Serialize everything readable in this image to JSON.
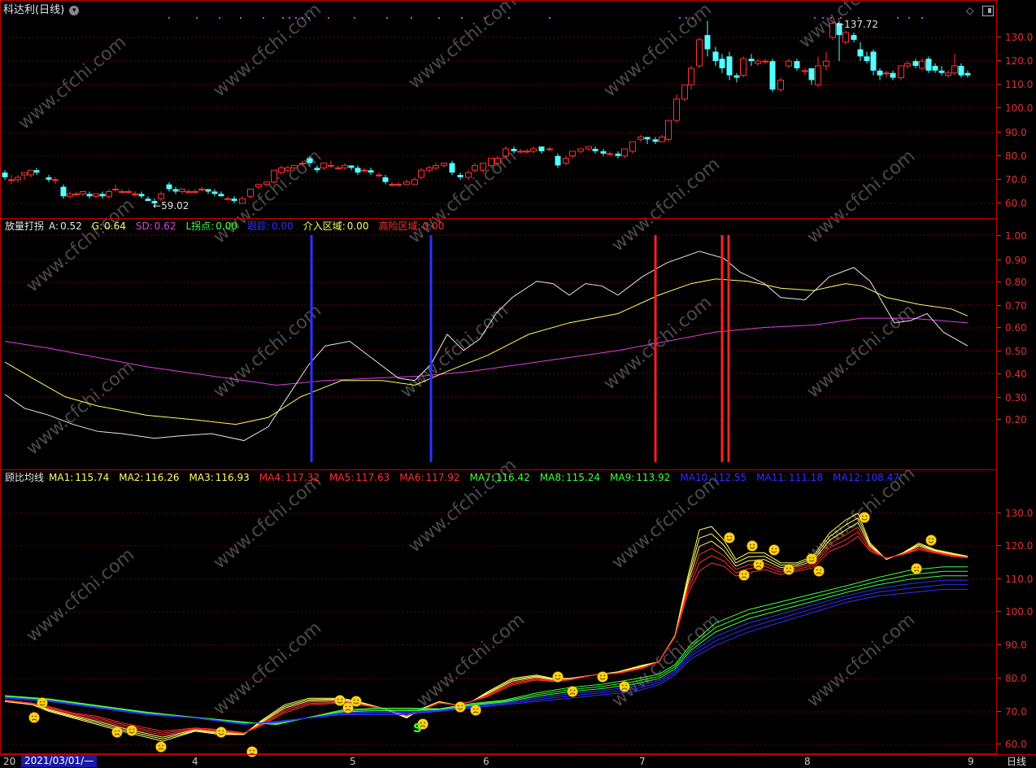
{
  "main": {
    "title": "科达利(日线)",
    "high_label": "137.72",
    "low_label": "59.02",
    "yaxis": [
      "130.0",
      "120.0",
      "110.0",
      "100.0",
      "90.0",
      "80.0",
      "70.0",
      "60.0"
    ]
  },
  "indicator1": {
    "name": "放量打拐",
    "items": [
      {
        "label": "A:",
        "value": "0.52",
        "color": "#e8e8e8"
      },
      {
        "label": "G:",
        "value": "0.64",
        "color": "#ffff66"
      },
      {
        "label": "SD:",
        "value": "0.62",
        "color": "#e040e0"
      },
      {
        "label": "L拐点:",
        "value": "0.00",
        "color": "#40ff40"
      },
      {
        "label": "跟踪:",
        "value": "0.00",
        "color": "#3030ff"
      },
      {
        "label": "介入区域:",
        "value": "0.00",
        "color": "#ffff66"
      },
      {
        "label": "高险区域:",
        "value": "0.00",
        "color": "#ff3030"
      }
    ],
    "yaxis": [
      "1.00",
      "0.90",
      "0.80",
      "0.70",
      "0.60",
      "0.50",
      "0.40",
      "0.30",
      "0.20"
    ]
  },
  "indicator2": {
    "name": "顾比均线",
    "items": [
      {
        "label": "MA1:",
        "value": "115.74",
        "color": "#ffff66"
      },
      {
        "label": "MA2:",
        "value": "116.26",
        "color": "#ffff66"
      },
      {
        "label": "MA3:",
        "value": "116.93",
        "color": "#ffff66"
      },
      {
        "label": "MA4:",
        "value": "117.32",
        "color": "#ff3030"
      },
      {
        "label": "MA5:",
        "value": "117.63",
        "color": "#ff3030"
      },
      {
        "label": "MA6:",
        "value": "117.92",
        "color": "#ff3030"
      },
      {
        "label": "MA7:",
        "value": "116.42",
        "color": "#40ff40"
      },
      {
        "label": "MA8:",
        "value": "115.24",
        "color": "#40ff40"
      },
      {
        "label": "MA9:",
        "value": "113.92",
        "color": "#40ff40"
      },
      {
        "label": "MA10:",
        "value": "112.55",
        "color": "#3030ff"
      },
      {
        "label": "MA11:",
        "value": "111.18",
        "color": "#3030ff"
      },
      {
        "label": "MA12:",
        "value": "108.47",
        "color": "#3030ff"
      }
    ],
    "yaxis": [
      "130.0",
      "120.0",
      "110.0",
      "100.0",
      "90.0",
      "80.0",
      "70.0",
      "60.0"
    ],
    "signal_label": "S"
  },
  "timeaxis": {
    "start_prefix": "20",
    "start_date": "2021/03/01/—",
    "months": [
      "4",
      "5",
      "6",
      "7",
      "8",
      "9"
    ],
    "period": "日线"
  },
  "watermark": "www.cfchi.com",
  "colors": {
    "up": "#ff3030",
    "down": "#54ffff",
    "grid": "#7a0000",
    "border": "#c00000"
  }
}
